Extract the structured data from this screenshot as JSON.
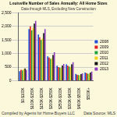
{
  "chart_data": {
    "type": "bar",
    "title": "Louisville Number of Sales Annually: All Home Sizes",
    "subtitle": "Data through MLS, Excluding New Construction",
    "footer_left": "Compiled by Agents for Home Buyers LLC",
    "footer_right": "Data Source: MLS",
    "categories": [
      "$0-$100K",
      "$100K-$150K",
      "$150K-$200K",
      "$200K-$250K",
      "$250K-$300K",
      "$300K-$400K",
      "$400K-$500K",
      "$500K+"
    ],
    "series": [
      {
        "name": "2008",
        "color": "#1f4fd8",
        "values": [
          350,
          1900,
          1700,
          900,
          550,
          600,
          250,
          300
        ]
      },
      {
        "name": "2009",
        "color": "#e02020",
        "values": [
          400,
          2000,
          1600,
          850,
          500,
          550,
          220,
          280
        ]
      },
      {
        "name": "2010",
        "color": "#20a040",
        "values": [
          380,
          1850,
          1500,
          800,
          480,
          520,
          210,
          260
        ]
      },
      {
        "name": "2011",
        "color": "#f0d020",
        "values": [
          420,
          1950,
          1550,
          820,
          470,
          500,
          200,
          250
        ]
      },
      {
        "name": "2012",
        "color": "#111111",
        "values": [
          450,
          2100,
          1750,
          950,
          560,
          600,
          240,
          300
        ]
      },
      {
        "name": "2013",
        "color": "#9040c0",
        "values": [
          400,
          2200,
          1900,
          1050,
          620,
          680,
          270,
          340
        ]
      }
    ],
    "ylim": [
      0,
      2500
    ],
    "yticks": [
      0,
      500,
      1000,
      1500,
      2000,
      2500
    ],
    "grid": true,
    "legend": "right"
  }
}
